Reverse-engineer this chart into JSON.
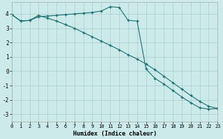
{
  "xlabel": "Humidex (Indice chaleur)",
  "bg_color": "#cceaea",
  "line_color": "#1a7070",
  "grid_color": "#aacccc",
  "xlim": [
    0,
    23
  ],
  "ylim": [
    -3.5,
    4.8
  ],
  "yticks": [
    -3,
    -2,
    -1,
    0,
    1,
    2,
    3,
    4
  ],
  "xticks": [
    0,
    1,
    2,
    3,
    4,
    5,
    6,
    7,
    8,
    9,
    10,
    11,
    12,
    13,
    14,
    15,
    16,
    17,
    18,
    19,
    20,
    21,
    22,
    23
  ],
  "line1_x": [
    0,
    1,
    2,
    3,
    4,
    5,
    6,
    7,
    8,
    9,
    10,
    11,
    12,
    13,
    14,
    15,
    16,
    17,
    18,
    19,
    20,
    21,
    22,
    23
  ],
  "line1_y": [
    3.95,
    3.5,
    3.55,
    3.8,
    3.85,
    3.9,
    3.95,
    4.0,
    4.05,
    4.1,
    4.2,
    4.5,
    4.45,
    3.55,
    3.5,
    0.15,
    -0.5,
    -0.9,
    -1.35,
    -1.8,
    -2.2,
    -2.55,
    -2.65,
    -2.6
  ],
  "line2_x": [
    0,
    1,
    2,
    3,
    4,
    5,
    6,
    7,
    8,
    9,
    10,
    11,
    12,
    13,
    14,
    15,
    16,
    17,
    18,
    19,
    20,
    21,
    22,
    23
  ],
  "line2_y": [
    3.95,
    3.5,
    3.55,
    3.9,
    3.7,
    3.5,
    3.25,
    3.0,
    2.7,
    2.4,
    2.1,
    1.8,
    1.5,
    1.15,
    0.85,
    0.5,
    0.1,
    -0.35,
    -0.8,
    -1.25,
    -1.7,
    -2.1,
    -2.45,
    -2.6
  ]
}
